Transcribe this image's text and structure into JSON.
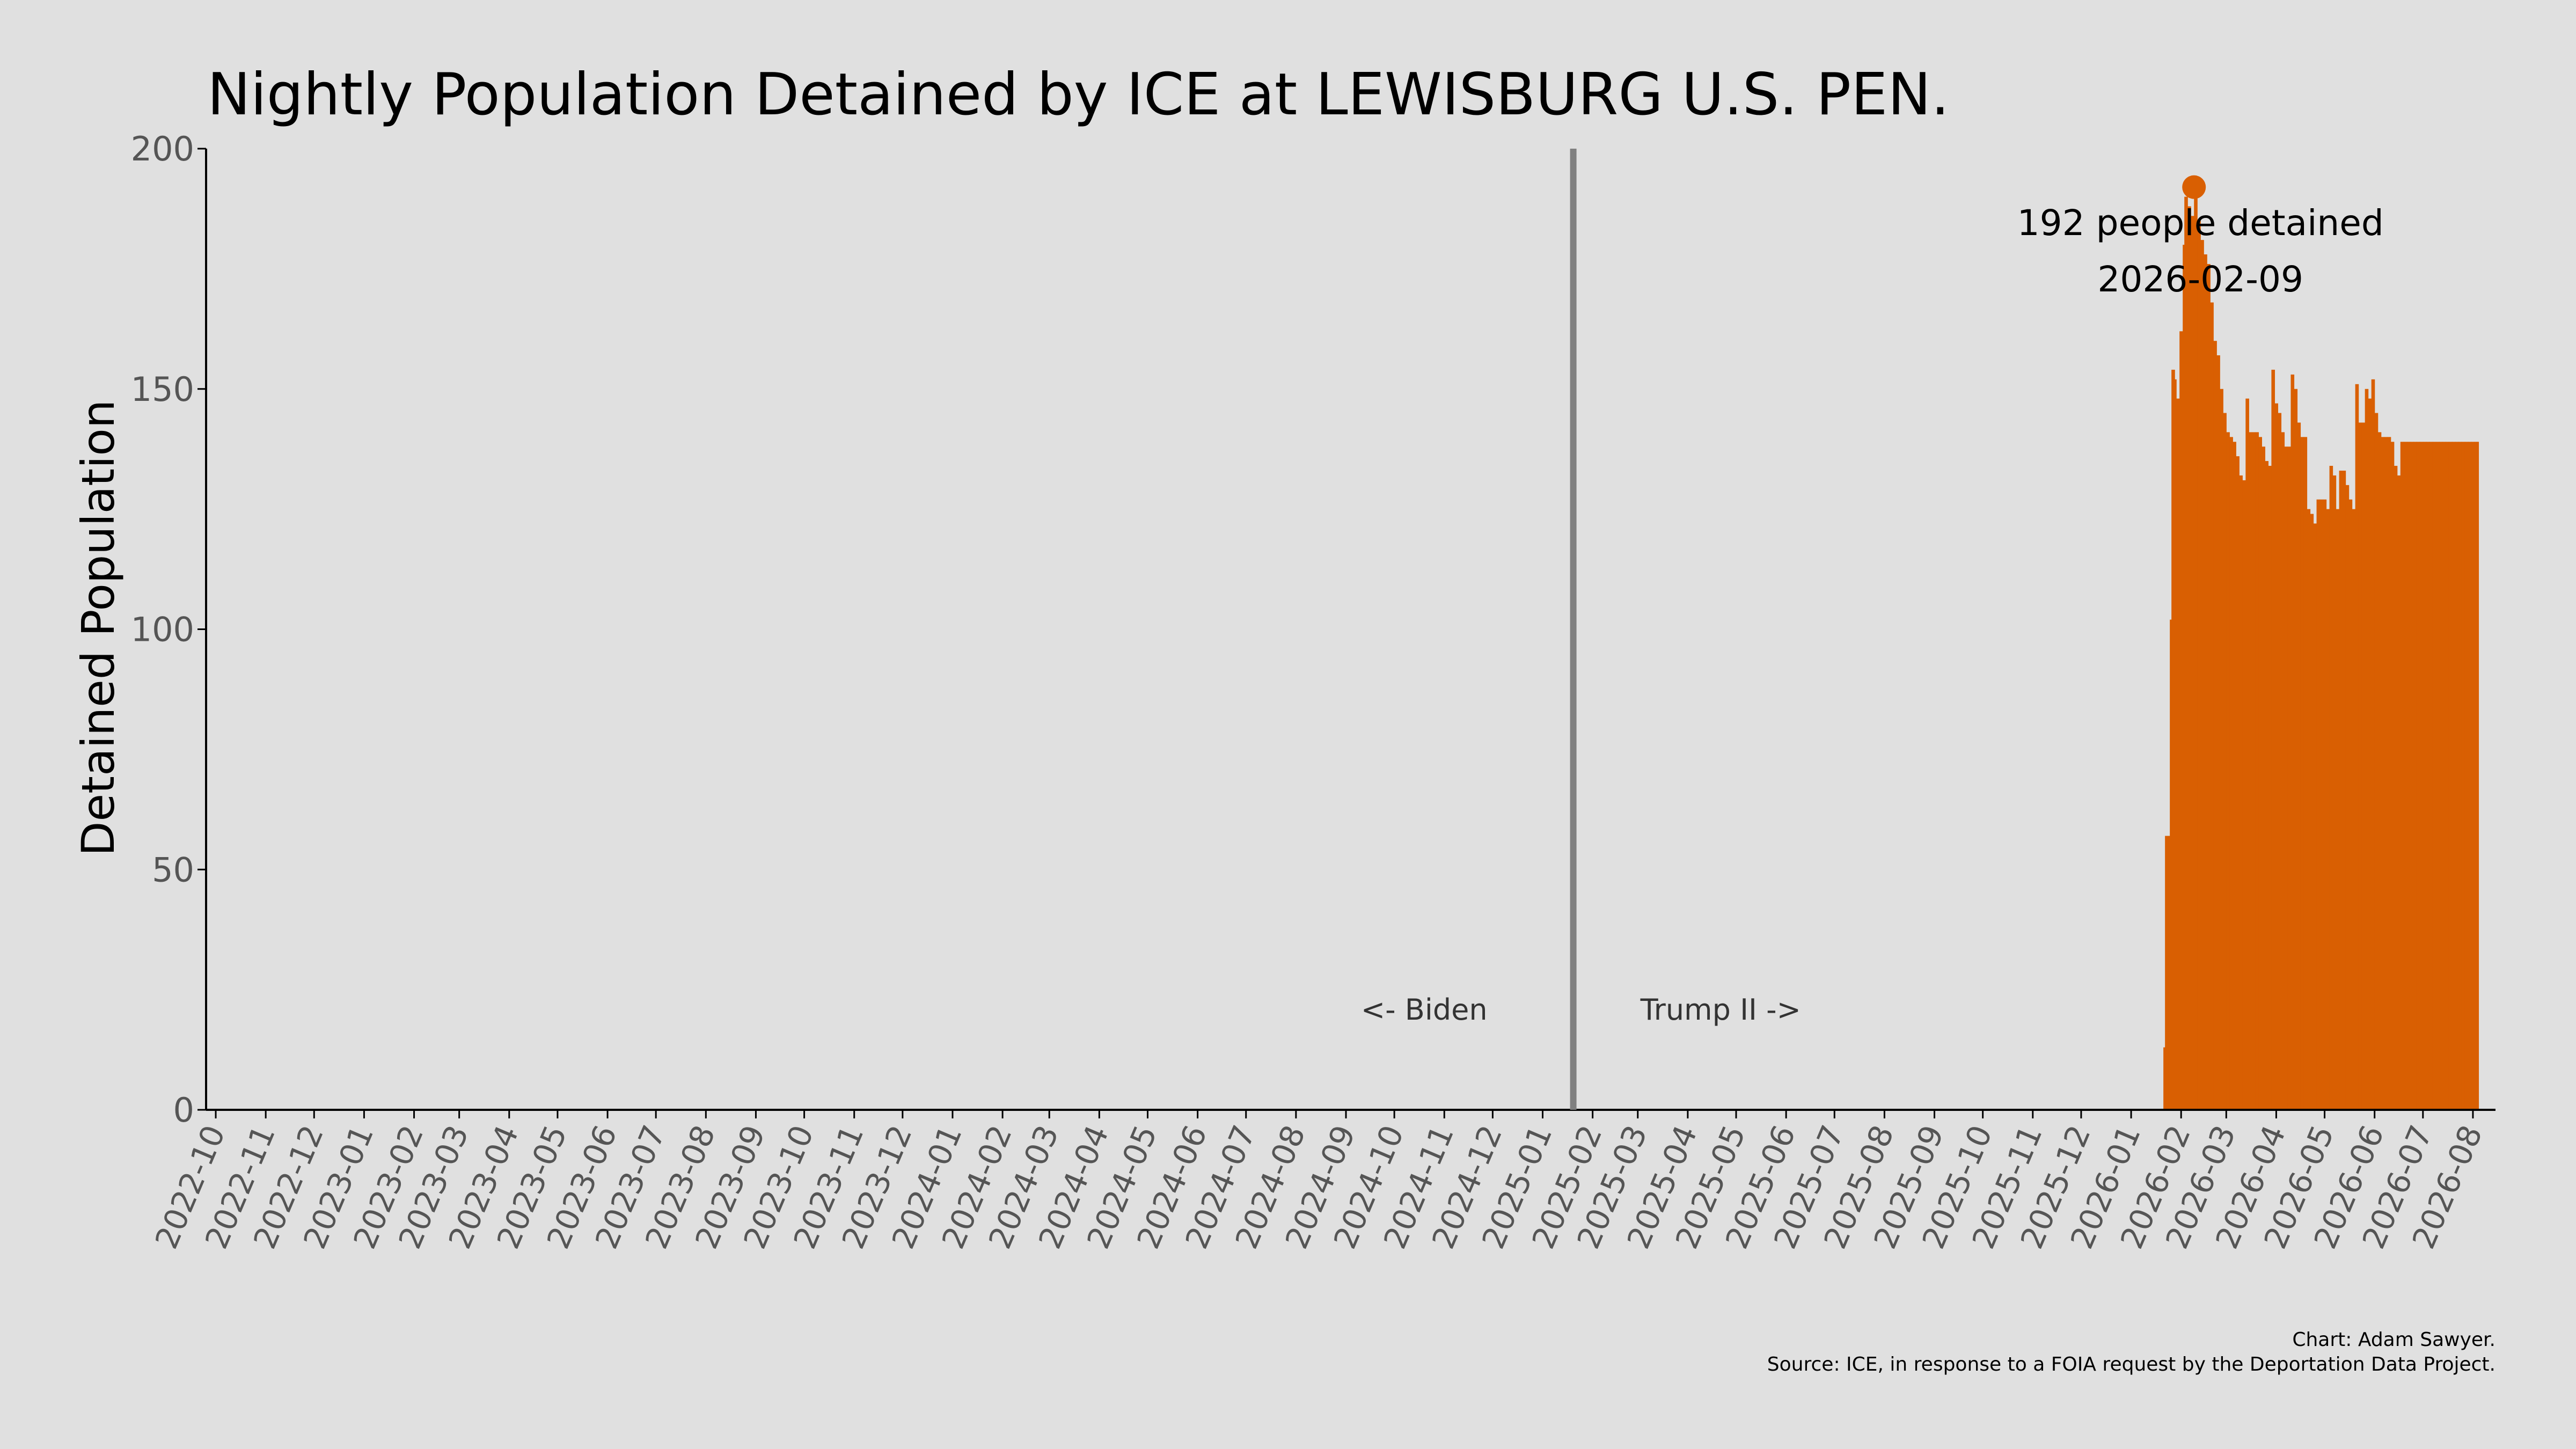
{
  "chart_data": {
    "type": "area",
    "title": "Nightly Population Detained by ICE at LEWISBURG U.S. PEN.",
    "ylabel": "Detained Population",
    "xlabel": "",
    "ylim": [
      0,
      200
    ],
    "yticks": [
      0,
      50,
      100,
      150,
      200
    ],
    "xlim": [
      "2022-09-25",
      "2026-08-15"
    ],
    "xticks": [
      "2022-10",
      "2022-11",
      "2022-12",
      "2023-01",
      "2023-02",
      "2023-03",
      "2023-04",
      "2023-05",
      "2023-06",
      "2023-07",
      "2023-08",
      "2023-09",
      "2023-10",
      "2023-11",
      "2023-12",
      "2024-01",
      "2024-02",
      "2024-03",
      "2024-04",
      "2024-05",
      "2024-06",
      "2024-07",
      "2024-08",
      "2024-09",
      "2024-10",
      "2024-11",
      "2024-12",
      "2025-01",
      "2025-02",
      "2025-03",
      "2025-04",
      "2025-05",
      "2025-06",
      "2025-07",
      "2025-08",
      "2025-09",
      "2025-10",
      "2025-11",
      "2025-12",
      "2026-01",
      "2026-02",
      "2026-03",
      "2026-04",
      "2026-05",
      "2026-06",
      "2026-07",
      "2026-08"
    ],
    "grid": false,
    "legend": "none",
    "colors": {
      "fill": "#d95f02",
      "divider": "#808080",
      "text": "#000000",
      "ticks": "#555555"
    },
    "divider_date": "2025-01-20",
    "divider_labels": {
      "left": "<- Biden",
      "right": "Trump II ->"
    },
    "peak": {
      "date": "2026-02-09",
      "value": 192,
      "label": "192 people detained",
      "date_label": "2026-02-09"
    },
    "series": [
      {
        "x": [
          "2026-01-21",
          "2026-01-22",
          "2026-01-24",
          "2026-01-25",
          "2026-01-26",
          "2026-01-28",
          "2026-01-29",
          "2026-01-31",
          "2026-02-02",
          "2026-02-03",
          "2026-02-05",
          "2026-02-07",
          "2026-02-09",
          "2026-02-11",
          "2026-02-13",
          "2026-02-15",
          "2026-02-17",
          "2026-02-19",
          "2026-02-21",
          "2026-02-23",
          "2026-02-25",
          "2026-02-27",
          "2026-03-01",
          "2026-03-03",
          "2026-03-05",
          "2026-03-07",
          "2026-03-09",
          "2026-03-11",
          "2026-03-13",
          "2026-03-15",
          "2026-03-17",
          "2026-03-19",
          "2026-03-21",
          "2026-03-23",
          "2026-03-25",
          "2026-03-27",
          "2026-03-29",
          "2026-03-31",
          "2026-04-02",
          "2026-04-04",
          "2026-04-06",
          "2026-04-08",
          "2026-04-10",
          "2026-04-12",
          "2026-04-14",
          "2026-04-16",
          "2026-04-18",
          "2026-04-20",
          "2026-04-22",
          "2026-04-24",
          "2026-04-26",
          "2026-04-28",
          "2026-04-30",
          "2026-05-02",
          "2026-05-04",
          "2026-05-06",
          "2026-05-08",
          "2026-05-10",
          "2026-05-12",
          "2026-05-14",
          "2026-05-16",
          "2026-05-18",
          "2026-05-20",
          "2026-05-22",
          "2026-05-24",
          "2026-05-26",
          "2026-05-28",
          "2026-05-30",
          "2026-06-01",
          "2026-06-03",
          "2026-06-05",
          "2026-06-07",
          "2026-06-09",
          "2026-06-11",
          "2026-06-13",
          "2026-06-15",
          "2026-06-17",
          "2026-06-19",
          "2026-06-21",
          "2026-06-23",
          "2026-06-25",
          "2026-06-27",
          "2026-06-29",
          "2026-07-01",
          "2026-07-03",
          "2026-07-05",
          "2026-07-07",
          "2026-07-09",
          "2026-07-11",
          "2026-07-13",
          "2026-07-15",
          "2026-07-17",
          "2026-07-19",
          "2026-07-21",
          "2026-07-23",
          "2026-07-25",
          "2026-07-27",
          "2026-07-29",
          "2026-07-31",
          "2026-08-02",
          "2026-08-03",
          "2026-08-04"
        ],
        "values": [
          13,
          57,
          57,
          102,
          154,
          152,
          148,
          162,
          180,
          190,
          188,
          186,
          192,
          185,
          181,
          178,
          176,
          168,
          160,
          157,
          150,
          145,
          141,
          140,
          139,
          136,
          132,
          131,
          148,
          141,
          141,
          141,
          140,
          138,
          135,
          134,
          154,
          147,
          145,
          141,
          138,
          138,
          153,
          150,
          143,
          140,
          140,
          125,
          124,
          122,
          127,
          127,
          127,
          125,
          134,
          132,
          125,
          133,
          133,
          130,
          127,
          125,
          151,
          143,
          143,
          150,
          148,
          152,
          145,
          141,
          140,
          140,
          140,
          139,
          134,
          132,
          139,
          139,
          139,
          139,
          139,
          139,
          139,
          139,
          139,
          139,
          139,
          139,
          139,
          139,
          139,
          139,
          139,
          139,
          139,
          139,
          139,
          139,
          139,
          139,
          139,
          139
        ],
        "xmax_date": "2026-08-04"
      }
    ],
    "credits": [
      "Chart: Adam Sawyer.",
      "Source: ICE, in response to a FOIA request by the Deportation Data Project."
    ]
  }
}
